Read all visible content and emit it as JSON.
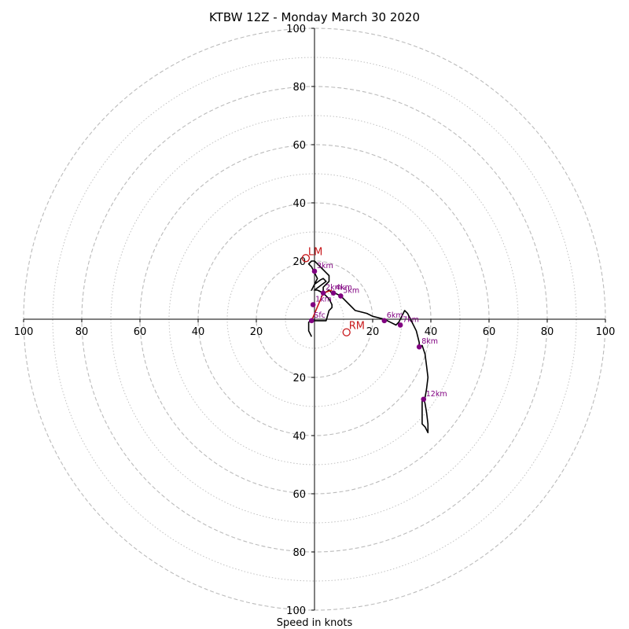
{
  "chart_data": {
    "type": "hodograph",
    "title": "KTBW 12Z - Monday March 30 2020",
    "xlabel": "Speed in knots",
    "ring_max": 100,
    "major_rings": [
      20,
      40,
      60,
      80,
      100
    ],
    "minor_rings": [
      10,
      30,
      50,
      70,
      90
    ],
    "tick_labels": [
      "20",
      "40",
      "60",
      "80",
      "100"
    ],
    "colors": {
      "grid": "#bbbbbb",
      "axis": "#000000",
      "trace": "#000000",
      "height_markers": "#800080",
      "motion": "#c8181b"
    },
    "trace": [
      [
        -1,
        -6
      ],
      [
        -2,
        -4
      ],
      [
        -2,
        -1
      ],
      [
        -1,
        -0.5
      ],
      [
        4,
        -0.5
      ],
      [
        5,
        3
      ],
      [
        6,
        4
      ],
      [
        6,
        5
      ],
      [
        5,
        7
      ],
      [
        4,
        8
      ],
      [
        3,
        9
      ],
      [
        2,
        9.5
      ],
      [
        1,
        10
      ],
      [
        0,
        10
      ],
      [
        4,
        13
      ],
      [
        3,
        14
      ],
      [
        2,
        13.5
      ],
      [
        0,
        12
      ],
      [
        -1,
        10
      ],
      [
        1,
        14
      ],
      [
        0,
        16
      ],
      [
        -1,
        18
      ],
      [
        -2,
        19
      ],
      [
        -1,
        20
      ],
      [
        0,
        20
      ],
      [
        1,
        19
      ],
      [
        3,
        17
      ],
      [
        4,
        16
      ],
      [
        5,
        15
      ],
      [
        5,
        13
      ],
      [
        4,
        12
      ],
      [
        3,
        11
      ],
      [
        3,
        9
      ],
      [
        3.5,
        9
      ],
      [
        5,
        10
      ],
      [
        6,
        9
      ],
      [
        7,
        9
      ],
      [
        8,
        8.5
      ],
      [
        9,
        8
      ],
      [
        10,
        7
      ],
      [
        12,
        5
      ],
      [
        14,
        3
      ],
      [
        18,
        2
      ],
      [
        20,
        1
      ],
      [
        22,
        0.5
      ],
      [
        24,
        0
      ],
      [
        26,
        -1
      ],
      [
        28,
        -2
      ],
      [
        29,
        -1
      ],
      [
        30,
        1
      ],
      [
        31,
        3
      ],
      [
        32,
        2
      ],
      [
        33,
        0
      ],
      [
        34,
        -2
      ],
      [
        35,
        -4
      ],
      [
        36,
        -8
      ],
      [
        36,
        -10
      ],
      [
        37,
        -9
      ],
      [
        38,
        -12
      ],
      [
        38.5,
        -16
      ],
      [
        39,
        -20
      ],
      [
        38.5,
        -24
      ],
      [
        38,
        -27
      ],
      [
        37,
        -28
      ],
      [
        37,
        -33
      ],
      [
        37,
        -36
      ],
      [
        38,
        -37
      ],
      [
        39,
        -39
      ],
      [
        39,
        -36
      ],
      [
        38.5,
        -32
      ],
      [
        38,
        -29
      ],
      [
        37.5,
        -27
      ]
    ],
    "height_points": [
      {
        "label": "Sfc",
        "u": -1,
        "v": -0.5
      },
      {
        "label": "1km",
        "u": -0.5,
        "v": 5
      },
      {
        "label": "2km",
        "u": 3,
        "v": 9
      },
      {
        "label": "3km",
        "u": 0,
        "v": 16.5
      },
      {
        "label": "4km",
        "u": 6.5,
        "v": 9
      },
      {
        "label": "5km",
        "u": 9,
        "v": 8
      },
      {
        "label": "6km",
        "u": 24,
        "v": -0.5
      },
      {
        "label": "7km",
        "u": 29.5,
        "v": -2
      },
      {
        "label": "8km",
        "u": 36,
        "v": -9.5
      },
      {
        "label": "12km",
        "u": 37.5,
        "v": -27.5
      }
    ],
    "storm_motion": [
      {
        "label": "LM",
        "u": -3,
        "v": 21
      },
      {
        "label": "RM",
        "u": 11,
        "v": -4.5
      }
    ],
    "mean_wind_line": [
      [
        -1,
        -0.5
      ],
      [
        3,
        9
      ],
      [
        6,
        10
      ]
    ]
  }
}
